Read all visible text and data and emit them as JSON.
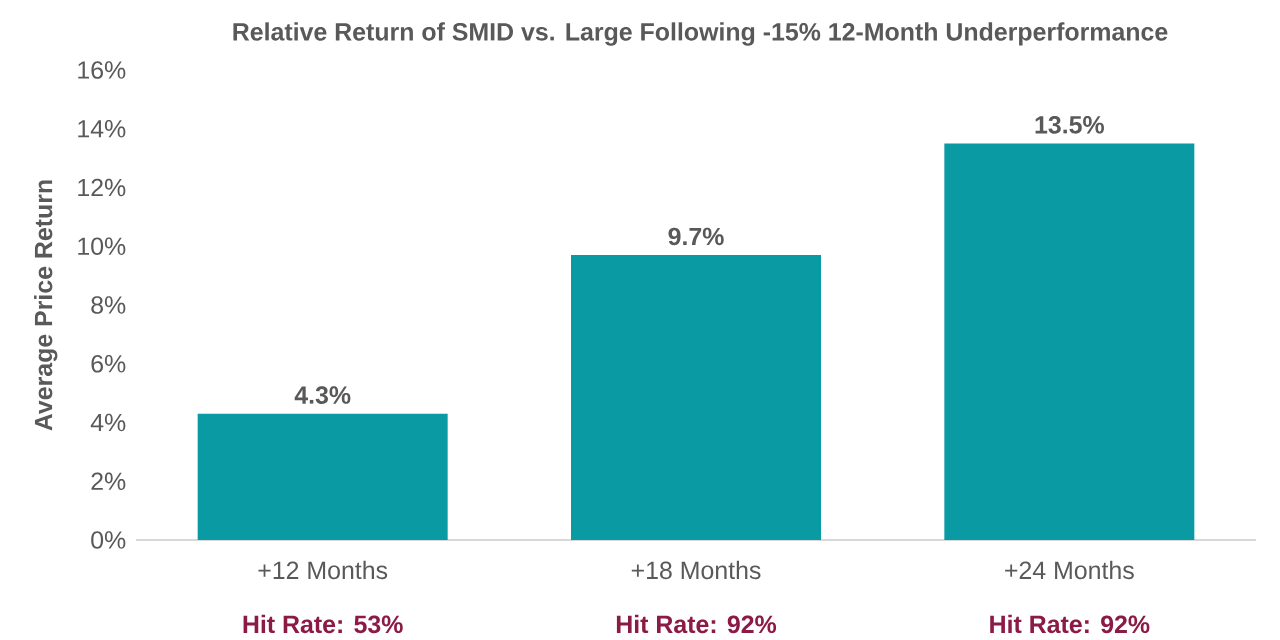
{
  "chart_data": {
    "type": "bar",
    "title": "Relative Return of SMID vs. Large Following -15% 12-Month Underperformance",
    "ylabel": "Average Price Return",
    "categories": [
      "+12 Months",
      "+18 Months",
      "+24 Months"
    ],
    "values": [
      4.3,
      9.7,
      13.5
    ],
    "value_labels": [
      "4.3%",
      "9.7%",
      "13.5%"
    ],
    "color": "#0a9aa3",
    "ylim": [
      0,
      16
    ],
    "yticks": [
      {
        "value": 0,
        "label": "0%"
      },
      {
        "value": 2,
        "label": "2%"
      },
      {
        "value": 4,
        "label": "4%"
      },
      {
        "value": 6,
        "label": "6%"
      },
      {
        "value": 8,
        "label": "8%"
      },
      {
        "value": 10,
        "label": "10%"
      },
      {
        "value": 12,
        "label": "12%"
      },
      {
        "value": 14,
        "label": "14%"
      },
      {
        "value": 16,
        "label": "16%"
      }
    ],
    "annotations": [
      "Hit Rate: 53%",
      "Hit Rate: 92%",
      "Hit Rate: 92%"
    ]
  }
}
